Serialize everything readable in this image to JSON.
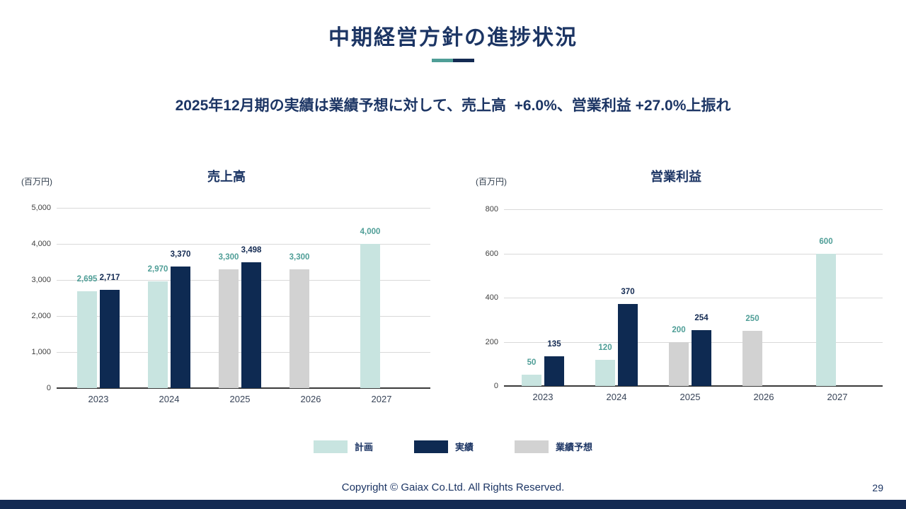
{
  "slide": {
    "title": "中期経営方針の進捗状況",
    "subtitle": "2025年12月期の実績は業績予想に対して、売上高  +6.0%、営業利益 +27.0%上振れ",
    "footer": "Copyright © Gaiax Co.Ltd. All Rights Reserved.",
    "page_number": "29",
    "accent_teal": "#4f9e97",
    "accent_navy": "#132a52"
  },
  "legend": {
    "items": [
      {
        "label": "計画",
        "color": "#c8e4e0"
      },
      {
        "label": "実績",
        "color": "#0e2a52"
      },
      {
        "label": "業績予想",
        "color": "#d2d2d2"
      }
    ]
  },
  "chart_data": [
    {
      "type": "bar",
      "title": "売上高",
      "ylabel": "(百万円)",
      "categories": [
        "2023",
        "2024",
        "2025",
        "2026",
        "2027"
      ],
      "series": [
        {
          "name": "計画",
          "color": "#c8e4e0",
          "label_color": "#4f9e97",
          "values": [
            2695,
            2970,
            null,
            null,
            4000
          ]
        },
        {
          "name": "実績",
          "color": "#0e2a52",
          "label_color": "#132a52",
          "values": [
            2717,
            3370,
            3498,
            null,
            null
          ]
        },
        {
          "name": "業績予想",
          "color": "#d2d2d2",
          "label_color": "#4f9e97",
          "values": [
            null,
            null,
            3300,
            3300,
            null
          ]
        }
      ],
      "ylim": [
        0,
        5000
      ],
      "ytick_step": 1000,
      "grid": true,
      "legend_position": "bottom-shared"
    },
    {
      "type": "bar",
      "title": "営業利益",
      "ylabel": "(百万円)",
      "categories": [
        "2023",
        "2024",
        "2025",
        "2026",
        "2027"
      ],
      "series": [
        {
          "name": "計画",
          "color": "#c8e4e0",
          "label_color": "#4f9e97",
          "values": [
            50,
            120,
            null,
            null,
            600
          ]
        },
        {
          "name": "実績",
          "color": "#0e2a52",
          "label_color": "#132a52",
          "values": [
            135,
            370,
            254,
            null,
            null
          ]
        },
        {
          "name": "業績予想",
          "color": "#d2d2d2",
          "label_color": "#4f9e97",
          "values": [
            null,
            null,
            200,
            250,
            null
          ]
        }
      ],
      "ylim": [
        0,
        800
      ],
      "ytick_step": 200,
      "grid": true,
      "legend_position": "bottom-shared"
    }
  ]
}
